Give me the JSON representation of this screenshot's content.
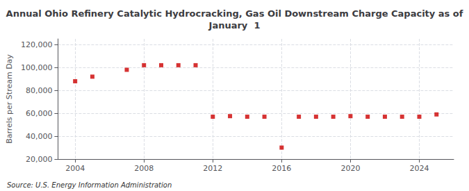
{
  "chart_data": {
    "type": "scatter",
    "title": "Annual Ohio Refinery Catalytic Hydrocracking, Gas Oil Downstream Charge Capacity as of\nJanuary  1",
    "ylabel": "Barrels per Stream Day",
    "annotations": [
      "Source: U.S. Energy Information Administration"
    ],
    "x": [
      2004,
      2005,
      2007,
      2008,
      2009,
      2010,
      2011,
      2012,
      2013,
      2014,
      2015,
      2016,
      2017,
      2018,
      2019,
      2020,
      2021,
      2022,
      2023,
      2024,
      2025
    ],
    "values": [
      88000,
      92000,
      98000,
      102000,
      102000,
      102000,
      102000,
      57000,
      57500,
      57000,
      57000,
      30000,
      57000,
      57000,
      57000,
      57500,
      57000,
      57000,
      57000,
      57000,
      59000
    ],
    "color": "#cc0000",
    "marker": "square",
    "xlim": [
      2003.0,
      2026.0
    ],
    "xticks": [
      2004,
      2008,
      2012,
      2016,
      2020,
      2024
    ],
    "ylim": [
      20000,
      125000
    ],
    "yticks": [
      {
        "value": 20000,
        "label": "20,000"
      },
      {
        "value": 40000,
        "label": "40,000"
      },
      {
        "value": 60000,
        "label": "60,000"
      },
      {
        "value": 80000,
        "label": "80,000"
      },
      {
        "value": 100000,
        "label": "100,000"
      },
      {
        "value": 120000,
        "label": "120,000"
      }
    ],
    "grid": true
  }
}
